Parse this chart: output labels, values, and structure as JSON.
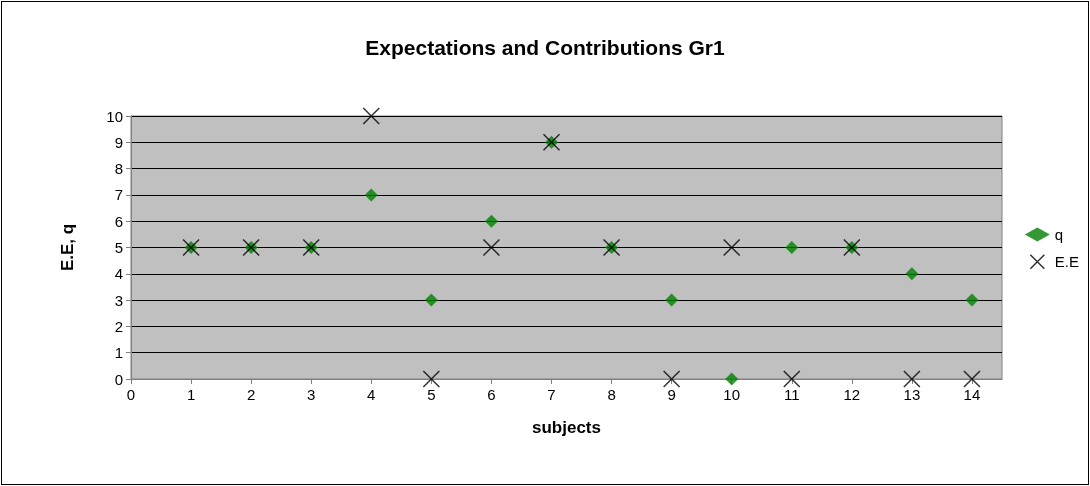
{
  "chart_data": {
    "type": "scatter",
    "title": "Expectations and Contributions Gr1",
    "xlabel": "subjects",
    "ylabel": "E.E, q",
    "x": [
      1,
      2,
      3,
      4,
      5,
      6,
      7,
      8,
      9,
      10,
      11,
      12,
      13,
      14
    ],
    "series": [
      {
        "name": "q",
        "color": "#008000",
        "marker": "diamond",
        "values": [
          5,
          5,
          5,
          7,
          3,
          6,
          9,
          5,
          3,
          0,
          5,
          5,
          4,
          3
        ]
      },
      {
        "name": "E.E",
        "color": "#000000",
        "marker": "cross",
        "values": [
          5,
          5,
          5,
          10,
          0,
          5,
          9,
          5,
          0,
          5,
          0,
          5,
          0,
          0
        ]
      }
    ],
    "xlim": [
      0,
      14.5
    ],
    "xticks": [
      0,
      1,
      2,
      3,
      4,
      5,
      6,
      7,
      8,
      9,
      10,
      11,
      12,
      13,
      14
    ],
    "ylim": [
      0,
      10
    ],
    "yticks": [
      0,
      1,
      2,
      3,
      4,
      5,
      6,
      7,
      8,
      9,
      10
    ],
    "grid": "y",
    "legend": "right"
  }
}
